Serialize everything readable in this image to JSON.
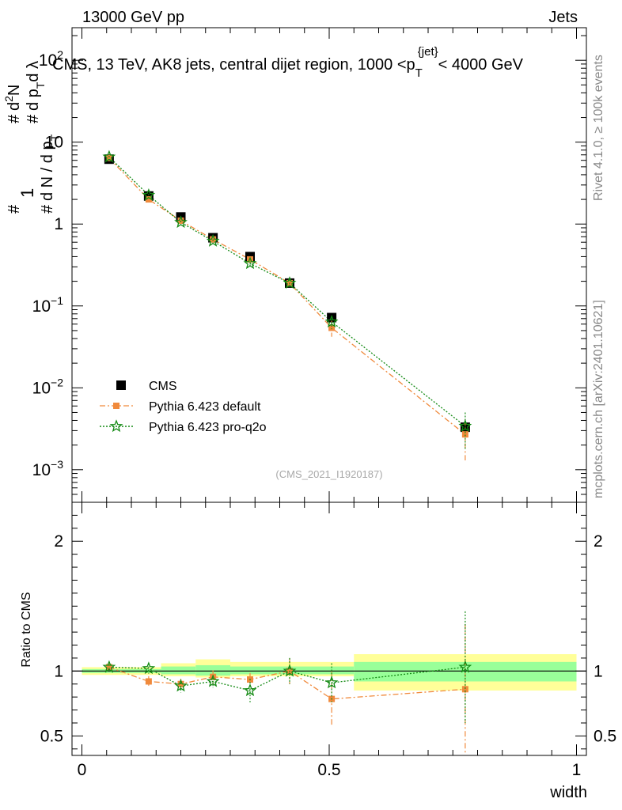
{
  "header": {
    "left": "13000 GeV pp",
    "right": "Jets"
  },
  "chart_data": [
    {
      "type": "scatter",
      "panel": "main",
      "title": "CMS, 13 TeV, AK8 jets, central dijet region, 1000 <p_T^{jet}< 4000 GeV",
      "title_parts": {
        "pre": "CMS, 13 TeV, AK8 jets, central dijet region, 1000 <p",
        "sub": "T",
        "sup": "{jet}",
        "post": "< 4000 GeV"
      },
      "ylabel": "1/dN/dp_T dN/dp_T dλ",
      "ylabel_parts": {
        "a": "1",
        "b": "d N / d p",
        "c": "T",
        "d": "d",
        "e": "2",
        "f": "N",
        "g": "d p",
        "h": "T",
        "i": "d λ",
        "hash": "#"
      },
      "yscale": "log",
      "ylim": [
        0.0004,
        250
      ],
      "xlim": [
        -0.02,
        1.02
      ],
      "y_tick_labels": [
        {
          "value": 0.001,
          "base": "10",
          "exp": "−3"
        },
        {
          "value": 0.01,
          "base": "10",
          "exp": "−2"
        },
        {
          "value": 0.1,
          "base": "10",
          "exp": "−1"
        },
        {
          "value": 1,
          "label": "1"
        },
        {
          "value": 10,
          "label": "10"
        },
        {
          "value": 100,
          "base": "10",
          "exp": "2"
        }
      ],
      "x": [
        0.055,
        0.135,
        0.2,
        0.265,
        0.34,
        0.42,
        0.505,
        0.775
      ],
      "bin_edges": [
        0.0,
        0.11,
        0.16,
        0.23,
        0.3,
        0.38,
        0.46,
        0.55,
        1.0
      ],
      "series": [
        {
          "name": "CMS",
          "color": "#000000",
          "marker": "square",
          "values": [
            6.2,
            2.2,
            1.22,
            0.68,
            0.4,
            0.19,
            0.072,
            0.0033
          ]
        },
        {
          "name": "Pythia 6.423 default",
          "color": "#f08a3c",
          "marker": "square-small",
          "line": "dashdot",
          "values": [
            6.4,
            2.0,
            1.1,
            0.65,
            0.37,
            0.19,
            0.054,
            0.0027
          ],
          "err": [
            0.2,
            0.08,
            0.05,
            0.03,
            0.02,
            0.02,
            0.012,
            0.0014
          ]
        },
        {
          "name": "Pythia 6.423 pro-q2o",
          "color": "#138a13",
          "marker": "star",
          "line": "dotted",
          "values": [
            6.6,
            2.25,
            1.05,
            0.62,
            0.33,
            0.19,
            0.064,
            0.0034
          ],
          "err": [
            0.2,
            0.08,
            0.05,
            0.03,
            0.02,
            0.02,
            0.012,
            0.0016
          ]
        }
      ],
      "legend": {
        "placement": "bottom-left"
      },
      "annotation": "(CMS_2021_I1920187)"
    },
    {
      "type": "scatter",
      "panel": "ratio",
      "ylabel": "Ratio to CMS",
      "xlabel": "width",
      "ylim": [
        0.35,
        2.3
      ],
      "xlim": [
        -0.02,
        1.02
      ],
      "y_tick_labels": [
        {
          "value": 0.5,
          "label": "0.5"
        },
        {
          "value": 1,
          "label": "1"
        },
        {
          "value": 2,
          "label": "2"
        }
      ],
      "x_tick_labels": [
        {
          "value": 0,
          "label": "0"
        },
        {
          "value": 0.5,
          "label": "0.5"
        },
        {
          "value": 1,
          "label": "1"
        }
      ],
      "bands": {
        "edges": [
          0.0,
          0.16,
          0.23,
          0.3,
          0.55,
          1.0
        ],
        "yellow": [
          [
            0.97,
            1.03
          ],
          [
            0.96,
            1.06
          ],
          [
            0.95,
            1.09
          ],
          [
            0.96,
            1.07
          ],
          [
            0.85,
            1.13
          ]
        ],
        "green": [
          [
            0.985,
            1.015
          ],
          [
            0.975,
            1.035
          ],
          [
            0.965,
            1.045
          ],
          [
            0.975,
            1.035
          ],
          [
            0.92,
            1.07
          ]
        ]
      },
      "series": [
        {
          "name": "Pythia 6.423 default",
          "color": "#f08a3c",
          "values": [
            1.03,
            0.92,
            0.9,
            0.955,
            0.935,
            1.0,
            0.785,
            0.86
          ],
          "err": [
            0.02,
            0.04,
            0.04,
            0.05,
            0.05,
            0.1,
            0.21,
            0.5
          ]
        },
        {
          "name": "Pythia 6.423 pro-q2o",
          "color": "#138a13",
          "values": [
            1.03,
            1.02,
            0.885,
            0.92,
            0.85,
            1.0,
            0.91,
            1.03
          ],
          "err": [
            0.02,
            0.04,
            0.05,
            0.05,
            0.09,
            0.1,
            0.15,
            0.43
          ]
        }
      ]
    }
  ],
  "side_labels": {
    "rivet": "Rivet 4.1.0, ≥ 100k events",
    "mcplots": "mcplots.cern.ch [arXiv:2401.10621]"
  }
}
